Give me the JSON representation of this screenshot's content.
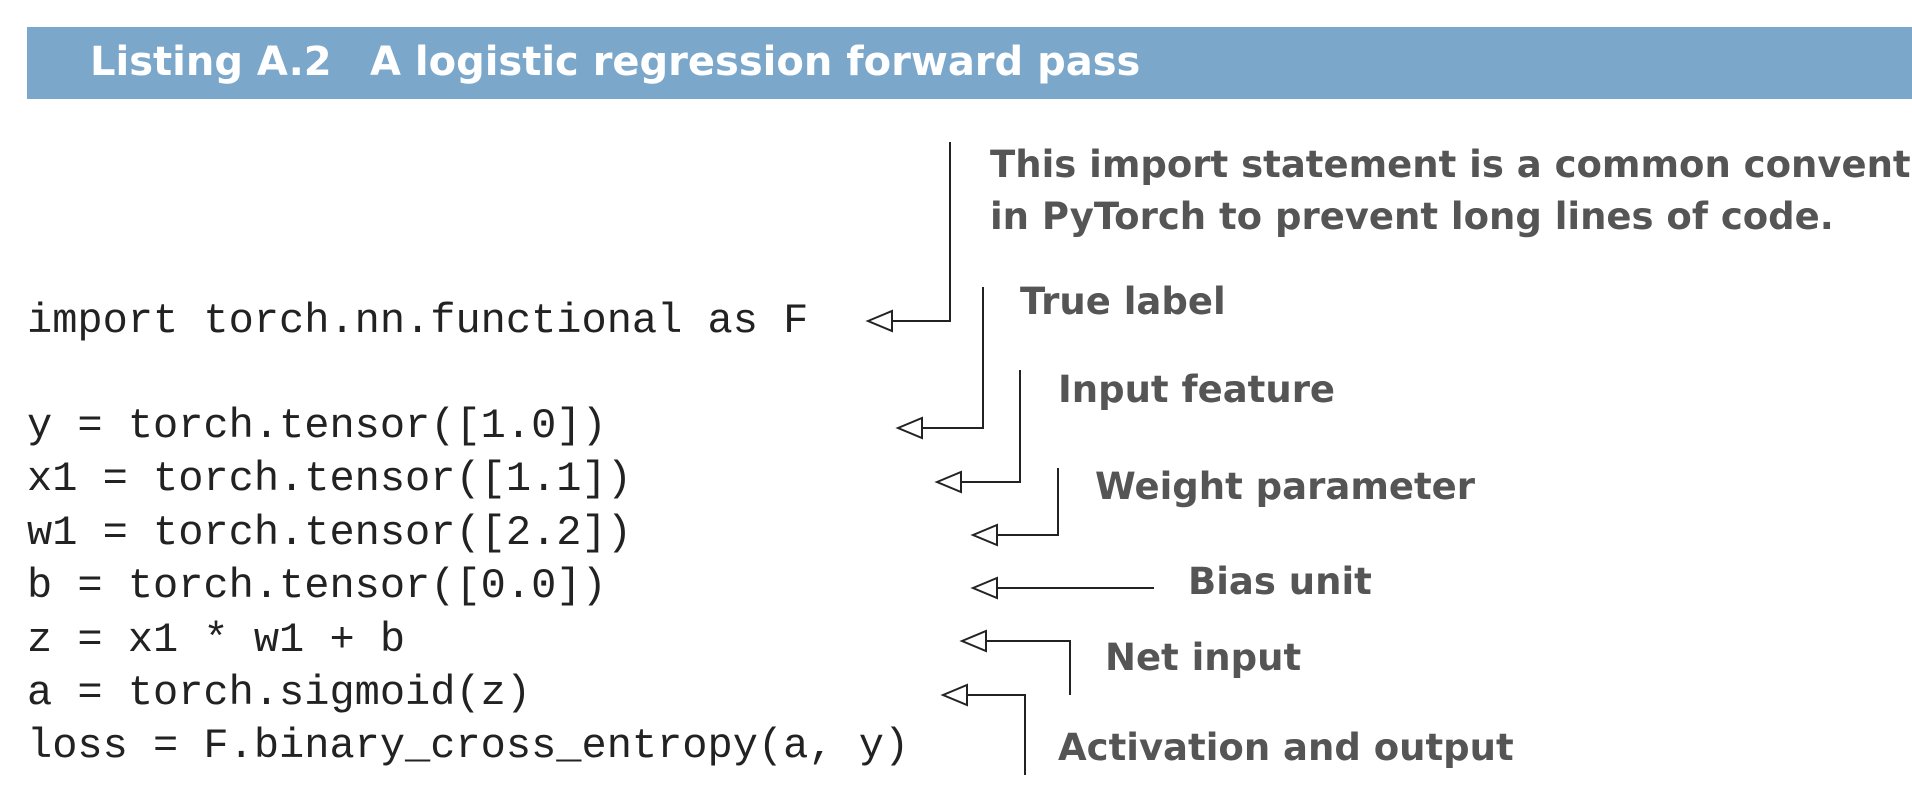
{
  "header": {
    "label": "Listing A.2",
    "title": "A logistic regression forward pass"
  },
  "code_lines": [
    "import torch.nn.functional as F",
    "y = torch.tensor([1.0])",
    "x1 = torch.tensor([1.1])",
    "w1 = torch.tensor([2.2])",
    "b = torch.tensor([0.0])",
    "z = x1 * w1 + b",
    "a = torch.sigmoid(z)",
    "loss = F.binary_cross_entropy(a, y)"
  ],
  "annotations": {
    "import_note_line1": "This import statement is a common convention",
    "import_note_line2": "in PyTorch to prevent long lines of code.",
    "true_label": "True label",
    "input_feature": "Input feature",
    "weight_parameter": "Weight parameter",
    "bias_unit": "Bias unit",
    "net_input": "Net input",
    "activation_output": "Activation and output"
  }
}
